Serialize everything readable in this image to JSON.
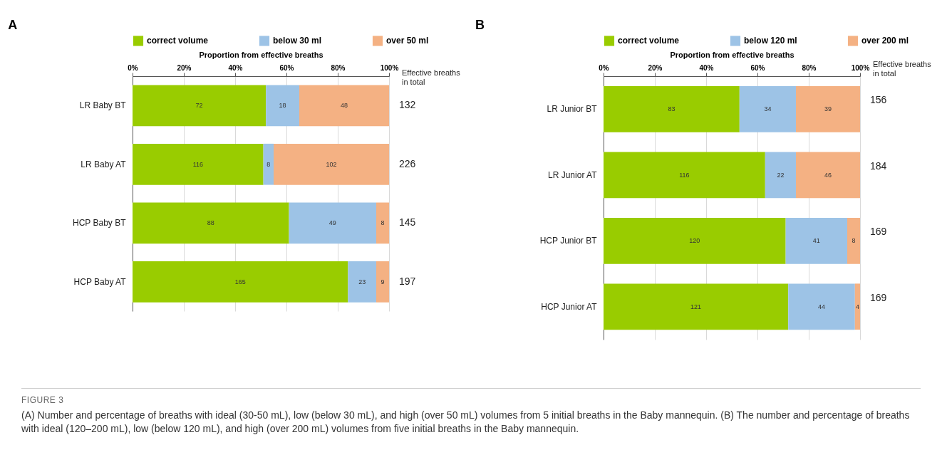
{
  "chart_data": [
    {
      "type": "bar",
      "orientation": "horizontal",
      "stacked": true,
      "title": "A",
      "xlabel": "Proportion from effective breaths",
      "categories": [
        "LR Baby BT",
        "LR Baby AT",
        "HCP Baby BT",
        "HCP Baby AT"
      ],
      "series": [
        {
          "name": "correct volume",
          "color": "#99cc00",
          "values": [
            52,
            51,
            61,
            84
          ]
        },
        {
          "name": "below 30 ml",
          "color": "#9dc3e6",
          "values": [
            13,
            4,
            34,
            11
          ]
        },
        {
          "name": "over 50 ml",
          "color": "#f4b183",
          "values": [
            35,
            45,
            5,
            5
          ]
        }
      ],
      "xlim": [
        0,
        100
      ],
      "xticks": [
        {
          "value": 0,
          "label": "0%"
        },
        {
          "value": 20,
          "label": "20%"
        },
        {
          "value": 40,
          "label": "40%"
        },
        {
          "value": 60,
          "label": "60%"
        },
        {
          "value": 80,
          "label": "80%"
        },
        {
          "value": 100,
          "label": "100%"
        }
      ],
      "grid": "x",
      "legend": "top",
      "annotations": [
        "Effective breaths\nin total",
        "72",
        "18",
        "48",
        "132",
        "116",
        "8",
        "102",
        "226",
        "88",
        "49",
        "8",
        "145",
        "165",
        "23",
        "9",
        "197",
        "FIGURE 3",
        "(A) Number and percentage of breaths with ideal (30-50 mL), low (below 30 mL), and high (over 50 mL) volumes from 5 initial breaths in the Baby mannequin. (B) The number and percentage of breaths with ideal (120–200 mL), low (below 120 mL), and high (over 200 mL) volumes from five initial breaths in the Baby mannequin."
      ]
    },
    {
      "type": "bar",
      "orientation": "horizontal",
      "stacked": true,
      "title": "B",
      "xlabel": "Proportion from effective breaths",
      "categories": [
        "LR Junior BT",
        "LR Junior AT",
        "HCP Junior BT",
        "HCP Junior AT"
      ],
      "series": [
        {
          "name": "correct volume",
          "color": "#99cc00",
          "values": [
            53,
            63,
            71,
            72
          ]
        },
        {
          "name": "below 120 ml",
          "color": "#9dc3e6",
          "values": [
            22,
            12,
            24,
            26
          ]
        },
        {
          "name": "over 200 ml",
          "color": "#f4b183",
          "values": [
            25,
            25,
            5,
            2
          ]
        }
      ],
      "xlim": [
        0,
        100
      ],
      "xticks": [
        {
          "value": 0,
          "label": "0%"
        },
        {
          "value": 20,
          "label": "20%"
        },
        {
          "value": 40,
          "label": "40%"
        },
        {
          "value": 60,
          "label": "60%"
        },
        {
          "value": 80,
          "label": "80%"
        },
        {
          "value": 100,
          "label": "100%"
        }
      ],
      "grid": "x",
      "legend": "top",
      "annotations": [
        "Effective breaths\nin total",
        "83",
        "34",
        "39",
        "156",
        "116",
        "22",
        "46",
        "184",
        "120",
        "41",
        "8",
        "169",
        "121",
        "44",
        "4",
        "169"
      ]
    }
  ]
}
